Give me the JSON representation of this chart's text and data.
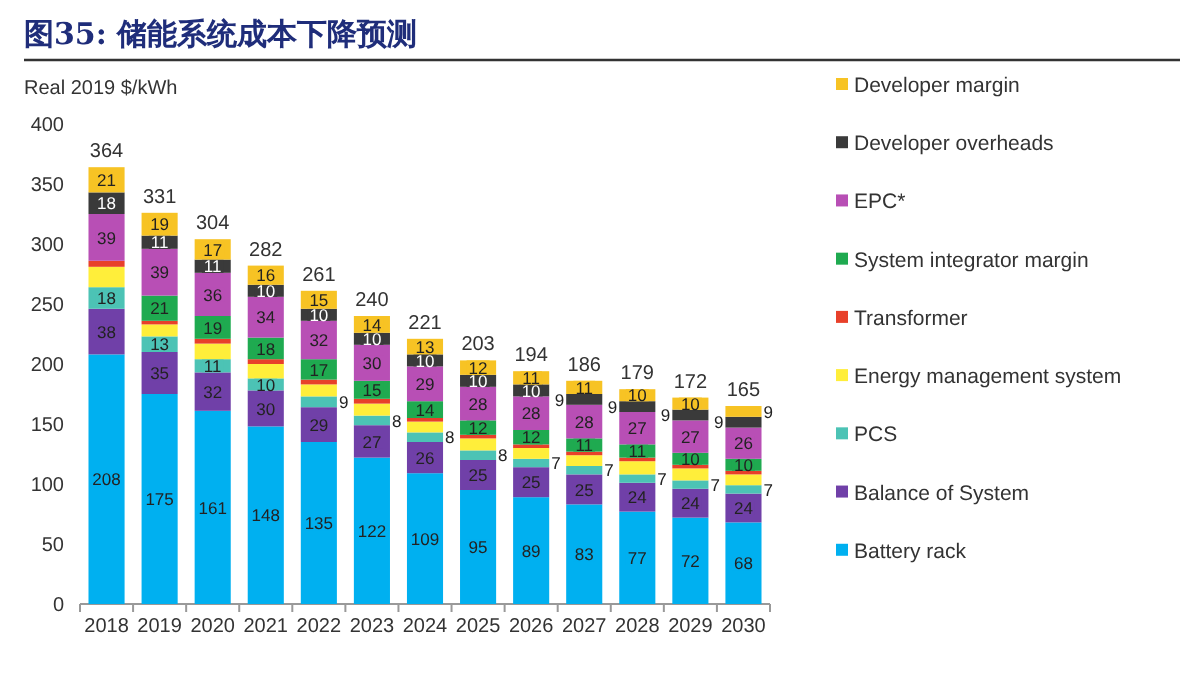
{
  "chart_data": {
    "type": "bar",
    "stacked": true,
    "title": "图35:    储能系统成本下降预测",
    "ylabel": "Real 2019 $/kWh",
    "categories": [
      "2018",
      "2019",
      "2020",
      "2021",
      "2022",
      "2023",
      "2024",
      "2025",
      "2026",
      "2027",
      "2028",
      "2029",
      "2030"
    ],
    "ylim": [
      0,
      400
    ],
    "yticks": [
      0,
      50,
      100,
      150,
      200,
      250,
      300,
      350,
      400
    ],
    "grid": false,
    "legend": "right",
    "series": [
      {
        "name": "Battery rack",
        "color": "#00b0f0",
        "values": [
          208,
          175,
          161,
          148,
          135,
          122,
          109,
          95,
          89,
          83,
          77,
          72,
          68
        ],
        "value_labels": [
          "208",
          "175",
          "161",
          "148",
          "135",
          "122",
          "109",
          "95",
          "89",
          "83",
          "77",
          "72",
          "68"
        ]
      },
      {
        "name": "Balance of System",
        "color": "#7040a8",
        "values": [
          38,
          35,
          32,
          30,
          29,
          27,
          26,
          25,
          25,
          25,
          24,
          24,
          24
        ],
        "value_labels": [
          "38",
          "35",
          "32",
          "30",
          "29",
          "27",
          "26",
          "25",
          "25",
          "25",
          "24",
          "24",
          "24"
        ]
      },
      {
        "name": "PCS",
        "color": "#4cc3b5",
        "values": [
          18,
          13,
          11,
          10,
          9,
          8,
          8,
          8,
          7,
          7,
          7,
          7,
          7
        ],
        "value_labels": [
          "18",
          "13",
          "11",
          "10",
          "9",
          "8",
          "8",
          "8",
          "7",
          "7",
          "7",
          "7",
          "7"
        ]
      },
      {
        "name": "Energy management system",
        "color": "#ffee3a",
        "values": [
          17,
          10,
          13,
          12,
          10,
          10,
          9,
          10,
          9,
          9,
          11,
          10,
          9
        ],
        "value_labels": [
          null,
          null,
          null,
          null,
          null,
          null,
          null,
          null,
          null,
          null,
          null,
          null,
          null
        ]
      },
      {
        "name": "Transformer",
        "color": "#e8402a",
        "values": [
          5,
          3,
          4,
          4,
          4,
          4,
          3,
          3,
          3,
          3,
          3,
          3,
          3
        ],
        "value_labels": [
          null,
          null,
          null,
          null,
          null,
          null,
          null,
          null,
          null,
          null,
          null,
          null,
          null
        ]
      },
      {
        "name": "System integrator margin",
        "color": "#1faa50",
        "values": [
          null,
          21,
          19,
          18,
          17,
          15,
          14,
          12,
          12,
          11,
          11,
          10,
          10
        ],
        "value_labels": [
          null,
          "21",
          "19",
          "18",
          "17",
          "15",
          "14",
          "12",
          "12",
          "11",
          "11",
          "10",
          "10"
        ]
      },
      {
        "name": "EPC*",
        "color": "#b84fb5",
        "values": [
          39,
          39,
          36,
          34,
          32,
          30,
          29,
          28,
          28,
          28,
          27,
          27,
          26
        ],
        "value_labels": [
          "39",
          "39",
          "36",
          "34",
          "32",
          "30",
          "29",
          "28",
          "28",
          "28",
          "27",
          "27",
          "26"
        ]
      },
      {
        "name": "Developer overheads",
        "color": "#3a3a3a",
        "values": [
          18,
          11,
          11,
          10,
          10,
          10,
          10,
          10,
          10,
          9,
          9,
          9,
          9
        ],
        "value_labels": [
          "18",
          "11",
          "11",
          "10",
          "10",
          "10",
          "10",
          "10",
          "10",
          "9",
          "9",
          "9",
          "9"
        ]
      },
      {
        "name": "Developer margin",
        "color": "#f7c324",
        "values": [
          21,
          19,
          17,
          16,
          15,
          14,
          13,
          12,
          11,
          11,
          10,
          10,
          9
        ],
        "value_labels": [
          "21",
          "19",
          "17",
          "16",
          "15",
          "14",
          "13",
          "12",
          "11",
          "11",
          "10",
          "10",
          "9"
        ]
      }
    ],
    "totals": [
      "364",
      "331",
      "304",
      "282",
      "261",
      "240",
      "221",
      "203",
      "194",
      "186",
      "179",
      "172",
      "165"
    ]
  }
}
